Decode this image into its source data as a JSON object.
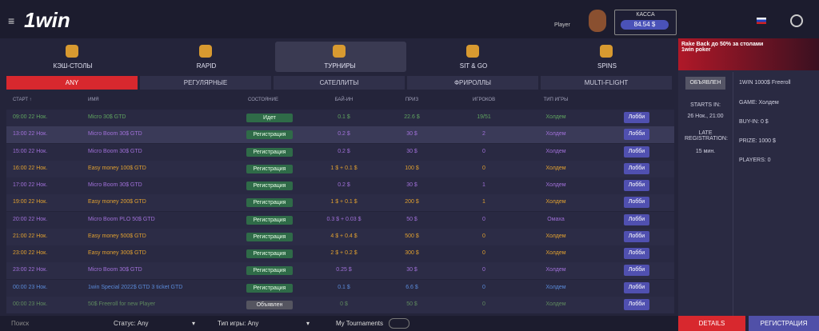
{
  "header": {
    "logo": "1win",
    "player": "Player",
    "cashier_label": "КАССА",
    "balance": "84.54 $"
  },
  "tabs": [
    "КЭШ-СТОЛЫ",
    "RAPID",
    "ТУРНИРЫ",
    "SIT & GO",
    "SPINS"
  ],
  "subtabs": [
    "ANY",
    "РЕГУЛЯРНЫЕ",
    "САТЕЛЛИТЫ",
    "ФРИРОЛЛЫ",
    "MULTI-FLIGHT"
  ],
  "table": {
    "columns": [
      "СТАРТ ↑",
      "ИМЯ",
      "СОСТОЯНИЕ",
      "БАЙ-ИН",
      "ПРИЗ",
      "ИГРОКОВ",
      "ТИП ИГРЫ"
    ],
    "lobby_button": "Лобби",
    "rows": [
      {
        "color": "#5fa35f",
        "cells": [
          "09:00 22 Нок.",
          "Micro 30$ GTD",
          "Идет",
          "0.1 $",
          "22.6 $",
          "19/51",
          "Холдем"
        ]
      },
      {
        "color": "#a070d8",
        "cells": [
          "13:00 22 Нок.",
          "Micro Boom 30$ GTD",
          "Регистрация",
          "0.2 $",
          "30 $",
          "2",
          "Холдем"
        ]
      },
      {
        "color": "#a070d8",
        "cells": [
          "15:00 22 Нок.",
          "Micro Boom 30$ GTD",
          "Регистрация",
          "0.2 $",
          "30 $",
          "0",
          "Холдем"
        ]
      },
      {
        "color": "#e0a030",
        "cells": [
          "16:00 22 Нок.",
          "Easy money 100$ GTD",
          "Регистрация",
          "1 $ + 0.1 $",
          "100 $",
          "0",
          "Холдем"
        ]
      },
      {
        "color": "#a070d8",
        "cells": [
          "17:00 22 Нок.",
          "Micro Boom 30$ GTD",
          "Регистрация",
          "0.2 $",
          "30 $",
          "1",
          "Холдем"
        ]
      },
      {
        "color": "#e0a030",
        "cells": [
          "19:00 22 Нок.",
          "Easy money 200$ GTD",
          "Регистрация",
          "1 $ + 0.1 $",
          "200 $",
          "1",
          "Холдем"
        ]
      },
      {
        "color": "#a070d8",
        "cells": [
          "20:00 22 Нок.",
          "Micro Boom PLO 50$ GTD",
          "Регистрация",
          "0.3 $ + 0.03 $",
          "50 $",
          "0",
          "Омаха"
        ]
      },
      {
        "color": "#e0a030",
        "cells": [
          "21:00 22 Нок.",
          "Easy money 500$ GTD",
          "Регистрация",
          "4 $ + 0.4 $",
          "500 $",
          "0",
          "Холдем"
        ]
      },
      {
        "color": "#e0a030",
        "cells": [
          "23:00 22 Нок.",
          "Easy money 300$ GTD",
          "Регистрация",
          "2 $ + 0.2 $",
          "300 $",
          "0",
          "Холдем"
        ]
      },
      {
        "color": "#a070d8",
        "cells": [
          "23:00 22 Нок.",
          "Micro Boom 30$ GTD",
          "Регистрация",
          "0.25 $",
          "30 $",
          "0",
          "Холдем"
        ]
      },
      {
        "color": "#5a8ad8",
        "cells": [
          "00:00 23 Нок.",
          "1win Special 2022$ GTD 3 ticket GTD",
          "Регистрация",
          "0.1 $",
          "6.6 $",
          "0",
          "Холдем"
        ]
      },
      {
        "color": "#5f8a5f",
        "cells": [
          "00:00 23 Нок.",
          "50$ Freeroll for new Player",
          "Объявлен",
          "0 $",
          "50 $",
          "0",
          "Холдем"
        ]
      }
    ]
  },
  "filters": {
    "search_placeholder": "Поиск",
    "status": "Статус: Any",
    "game_type": "Тип игры: Any",
    "my_tournaments": "My Tournaments"
  },
  "side_panel": {
    "banner": "Rake Back до 50% за столами 1win poker",
    "status_button": "ОБЪЯВЛЕН",
    "starts_in_label": "STARTS IN:",
    "starts_in": "26 Нок., 21:00",
    "late_reg_label": "LATE REGISTRATION:",
    "late_reg": "15 мин.",
    "name": "1WIN 1000$ Freeroll",
    "game": "GAME: Холдем",
    "buy_in": "BUY-IN: 0 $",
    "prize": "PRIZE: 1000 $",
    "players": "PLAYERS: 0",
    "details_button": "DETAILS",
    "register_button": "РЕГИСТРАЦИЯ"
  }
}
